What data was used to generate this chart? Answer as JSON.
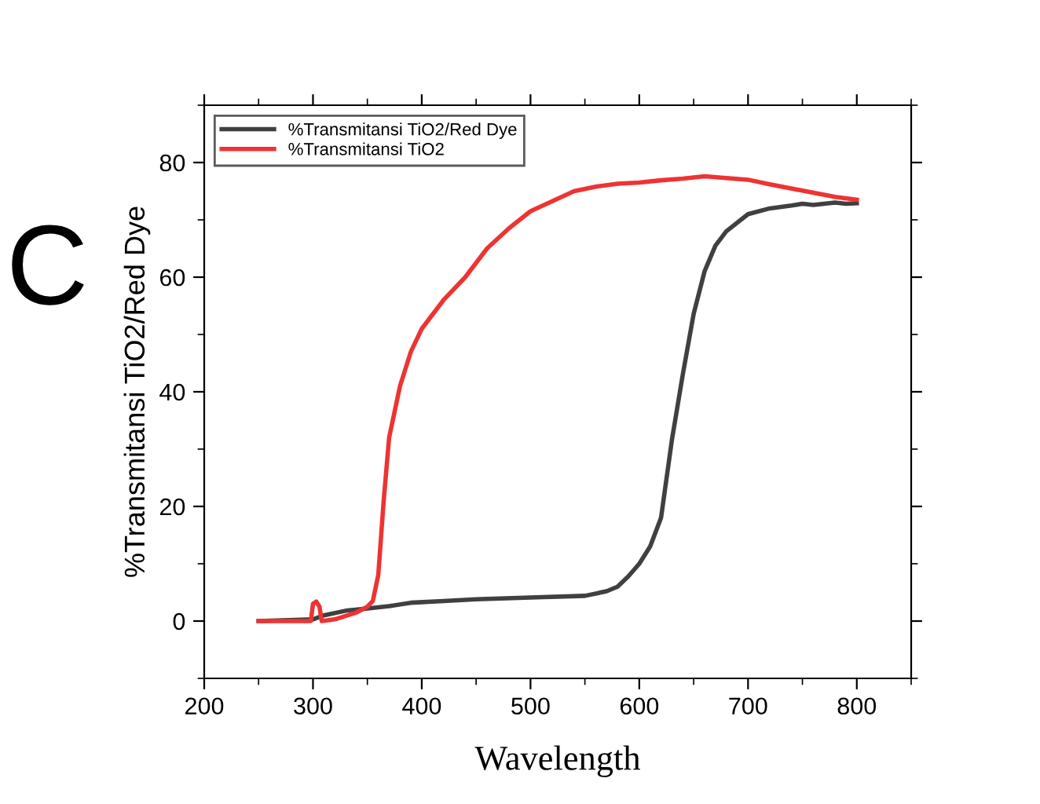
{
  "chart_data": {
    "type": "line",
    "xlabel": "Wavelength",
    "ylabel": "%Transmitansi TiO2/Red Dye",
    "annotations": [
      "C"
    ],
    "xlim": [
      200,
      850
    ],
    "ylim": [
      -10,
      90
    ],
    "xticks": [
      200,
      300,
      400,
      500,
      600,
      700,
      800
    ],
    "yticks": [
      0,
      20,
      40,
      60,
      80
    ],
    "grid": false,
    "legend": "top left",
    "marker": "none",
    "line_style": "solid",
    "series": [
      {
        "name": "%Transmitansi TiO2/Red Dye",
        "color": "#404040",
        "x": [
          250,
          300,
          310,
          330,
          350,
          370,
          390,
          420,
          450,
          500,
          550,
          570,
          580,
          590,
          600,
          610,
          620,
          630,
          640,
          650,
          660,
          670,
          680,
          700,
          720,
          740,
          750,
          760,
          780,
          790,
          800
        ],
        "values": [
          0,
          0.3,
          1,
          1.8,
          2.2,
          2.6,
          3.2,
          3.5,
          3.8,
          4.1,
          4.4,
          5.2,
          6,
          7.8,
          10,
          13,
          18,
          31.6,
          43,
          53.6,
          61,
          65.5,
          68,
          71,
          72,
          72.5,
          72.8,
          72.6,
          73,
          72.8,
          72.9
        ]
      },
      {
        "name": "%Transmitansi TiO2",
        "color": "#ee3333",
        "x": [
          250,
          298,
          300,
          303,
          306,
          308,
          320,
          340,
          350,
          355,
          360,
          365,
          370,
          380,
          390,
          400,
          420,
          440,
          460,
          480,
          500,
          540,
          560,
          580,
          600,
          620,
          640,
          660,
          680,
          700,
          720,
          750,
          780,
          800
        ],
        "values": [
          0,
          0,
          3,
          3.4,
          2.5,
          0,
          0.3,
          1.5,
          2.5,
          3.5,
          8,
          21,
          32,
          41,
          47,
          51,
          56,
          60,
          65,
          68.5,
          71.5,
          75,
          75.8,
          76.3,
          76.5,
          76.9,
          77.2,
          77.6,
          77.3,
          77,
          76.2,
          75.1,
          74,
          73.5
        ]
      }
    ]
  }
}
